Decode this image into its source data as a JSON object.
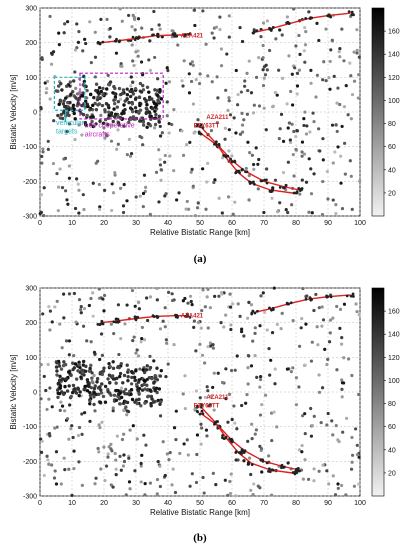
{
  "figure": {
    "panels": [
      "(a)",
      "(b)"
    ]
  },
  "chart_data": [
    {
      "type": "scatter",
      "title": "",
      "panel_label": "(a)",
      "xlabel": "Relative Bistatic Range [km]",
      "ylabel": "Bistatic Velocity [m/s]",
      "xlim": [
        0,
        100
      ],
      "ylim": [
        -300,
        300
      ],
      "xticks": [
        "0",
        "10",
        "20",
        "30",
        "40",
        "50",
        "60",
        "70",
        "80",
        "90",
        "100"
      ],
      "yticks": [
        "300",
        "200",
        "100",
        "0",
        "-100",
        "-200",
        "-300"
      ],
      "grid": true,
      "colorbar": {
        "ticks": [
          "160",
          "140",
          "120",
          "100",
          "80",
          "60",
          "40",
          "20"
        ],
        "range": [
          0,
          180
        ]
      },
      "tracks": [
        {
          "name": "AZA421",
          "points": [
            [
              19,
              200
            ],
            [
              24,
              205
            ],
            [
              30,
              212
            ],
            [
              36,
              220
            ],
            [
              42,
              222
            ],
            [
              46,
              222
            ]
          ]
        },
        {
          "name": "track-right",
          "points": [
            [
              67,
              230
            ],
            [
              72,
              240
            ],
            [
              78,
              255
            ],
            [
              84,
              270
            ],
            [
              90,
              278
            ],
            [
              97,
              285
            ]
          ]
        },
        {
          "name": "AZA211",
          "points": [
            [
              50,
              -60
            ],
            [
              56,
              -100
            ],
            [
              60,
              -140
            ],
            [
              64,
              -170
            ],
            [
              70,
              -200
            ],
            [
              76,
              -215
            ],
            [
              81,
              -225
            ]
          ]
        },
        {
          "name": "EZY63TT",
          "points": [
            [
              50,
              -40
            ],
            [
              55,
              -90
            ],
            [
              58,
              -130
            ],
            [
              62,
              -175
            ],
            [
              66,
              -205
            ],
            [
              72,
              -225
            ],
            [
              80,
              -235
            ]
          ]
        }
      ],
      "labels": [
        {
          "text": "AZA421",
          "x": 44,
          "y": 215
        },
        {
          "text": "AZA211",
          "x": 52,
          "y": -20
        },
        {
          "text": "EZY63TT",
          "x": 48,
          "y": -45
        }
      ],
      "annotations": [
        {
          "text": "vehicular targets",
          "color": "#1fb7c6"
        },
        {
          "text": "non cooperative aircrafts",
          "color": "#c020c0"
        }
      ]
    },
    {
      "type": "scatter",
      "title": "",
      "panel_label": "(b)",
      "xlabel": "Relative Bistatic Range [km]",
      "ylabel": "Bistatic Velocity [m/s]",
      "xlim": [
        0,
        100
      ],
      "ylim": [
        -300,
        300
      ],
      "xticks": [
        "0",
        "10",
        "20",
        "30",
        "40",
        "50",
        "60",
        "70",
        "80",
        "90",
        "100"
      ],
      "yticks": [
        "300",
        "200",
        "100",
        "0",
        "-100",
        "-200",
        "-300"
      ],
      "grid": true,
      "colorbar": {
        "ticks": [
          "160",
          "140",
          "120",
          "100",
          "80",
          "60",
          "40",
          "20"
        ],
        "range": [
          0,
          180
        ]
      },
      "tracks": [
        {
          "name": "AZA421",
          "points": [
            [
              19,
              200
            ],
            [
              24,
              205
            ],
            [
              30,
              212
            ],
            [
              36,
              218
            ],
            [
              42,
              220
            ],
            [
              46,
              220
            ]
          ]
        },
        {
          "name": "track-right",
          "points": [
            [
              67,
              230
            ],
            [
              72,
              240
            ],
            [
              78,
              255
            ],
            [
              84,
              268
            ],
            [
              90,
              275
            ],
            [
              97,
              280
            ]
          ]
        },
        {
          "name": "AZA211",
          "points": [
            [
              50,
              -60
            ],
            [
              56,
              -100
            ],
            [
              60,
              -140
            ],
            [
              64,
              -170
            ],
            [
              70,
              -200
            ],
            [
              76,
              -215
            ],
            [
              81,
              -225
            ]
          ]
        },
        {
          "name": "EZY63TT",
          "points": [
            [
              50,
              -40
            ],
            [
              55,
              -90
            ],
            [
              58,
              -130
            ],
            [
              62,
              -175
            ],
            [
              66,
              -205
            ],
            [
              72,
              -225
            ],
            [
              80,
              -235
            ]
          ]
        }
      ],
      "labels": [
        {
          "text": "AZA421",
          "x": 44,
          "y": 215
        },
        {
          "text": "AZA211",
          "x": 52,
          "y": -20
        },
        {
          "text": "EZY63TT",
          "x": 48,
          "y": -45
        }
      ]
    }
  ]
}
